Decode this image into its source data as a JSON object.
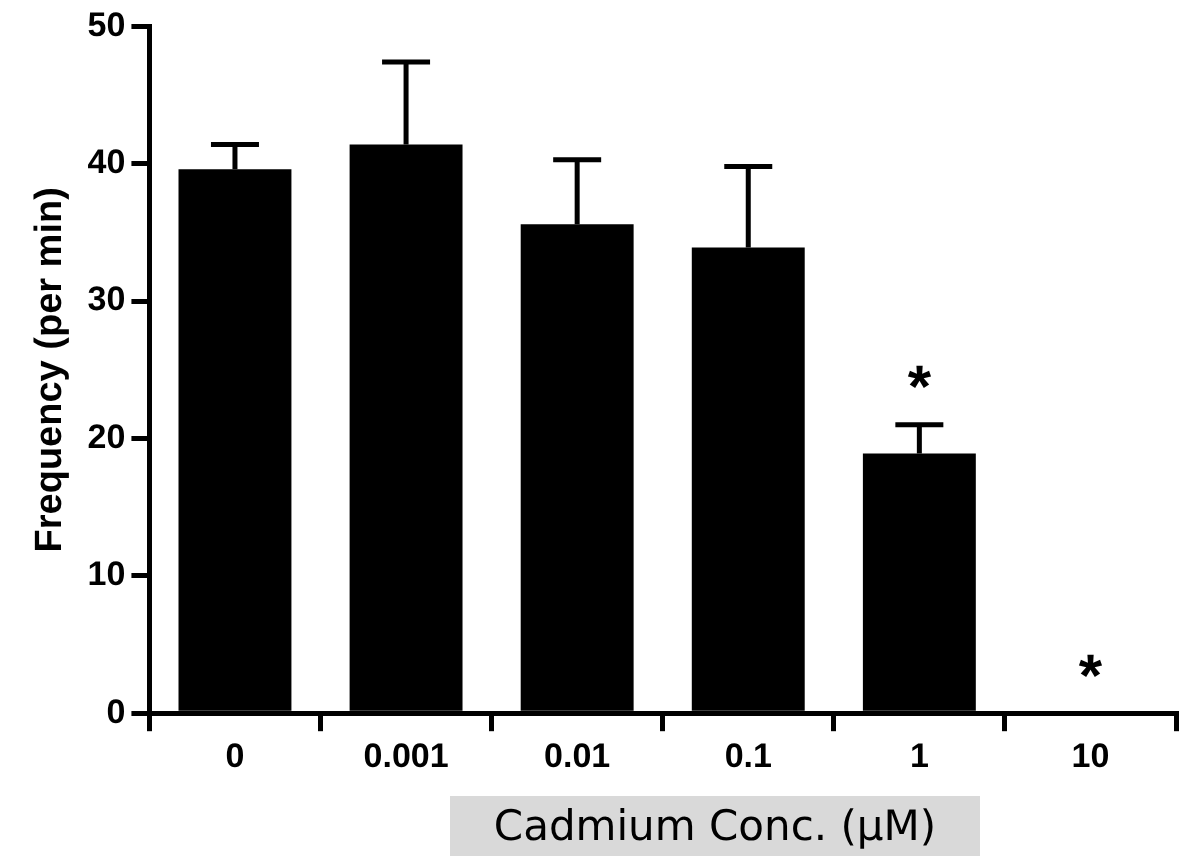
{
  "chart_data": {
    "type": "bar",
    "xlabel": "Cadmium Conc. (µM)",
    "ylabel": "Frequency (per min)",
    "categories": [
      "0",
      "0.001",
      "0.01",
      "0.1",
      "1",
      "10"
    ],
    "values": [
      39.6,
      41.4,
      35.6,
      33.9,
      18.9,
      0
    ],
    "errors": [
      [
        39.6,
        41.4
      ],
      [
        41.4,
        47.4
      ],
      [
        35.6,
        40.3
      ],
      [
        33.9,
        39.8
      ],
      [
        18.9,
        21.0
      ],
      null
    ],
    "color": "#000000",
    "ylim": [
      0,
      50
    ],
    "yticks": [
      0,
      10,
      20,
      30,
      40,
      50
    ],
    "grid": false,
    "legend": false,
    "annotations": [
      {
        "text": "*",
        "x": "1",
        "y": 21.0
      },
      {
        "text": "*",
        "x": "10",
        "y": 0
      }
    ]
  }
}
